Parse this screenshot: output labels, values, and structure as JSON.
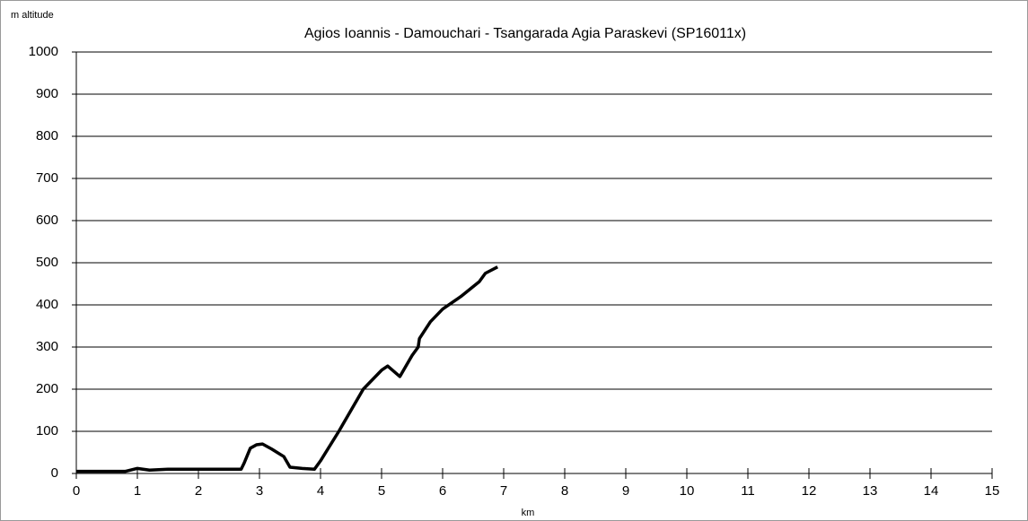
{
  "chart_data": {
    "type": "line",
    "title": "Agios Ioannis - Damouchari - Tsangarada Agia Paraskevi (SP16011x)",
    "y_label": "m altitude",
    "x_label": "km",
    "series": [
      {
        "name": "altitude",
        "color": "#000000",
        "x": [
          0,
          0.5,
          0.8,
          1.0,
          1.2,
          1.5,
          2.0,
          2.5,
          2.7,
          2.75,
          2.85,
          2.95,
          3.05,
          3.2,
          3.4,
          3.5,
          3.7,
          3.9,
          4.0,
          4.3,
          4.7,
          5.0,
          5.1,
          5.3,
          5.5,
          5.6,
          5.62,
          5.8,
          6.0,
          6.3,
          6.6,
          6.7,
          6.9
        ],
        "values": [
          5,
          5,
          5,
          12,
          8,
          10,
          10,
          10,
          10,
          25,
          60,
          68,
          70,
          58,
          40,
          15,
          12,
          10,
          30,
          100,
          200,
          245,
          255,
          230,
          280,
          300,
          320,
          360,
          390,
          420,
          455,
          475,
          490
        ]
      }
    ],
    "xlim": [
      0,
      15
    ],
    "xticks": [
      0,
      1,
      2,
      3,
      4,
      5,
      6,
      7,
      8,
      9,
      10,
      11,
      12,
      13,
      14,
      15
    ],
    "ylim": [
      0,
      1000
    ],
    "yticks": [
      0,
      100,
      200,
      300,
      400,
      500,
      600,
      700,
      800,
      900,
      1000
    ],
    "grid": true
  }
}
